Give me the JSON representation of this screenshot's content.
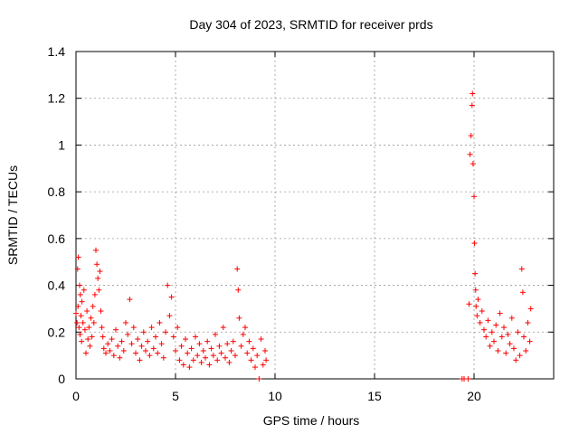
{
  "chart_data": {
    "type": "scatter",
    "title": "Day 304 of 2023, SRMTID for receiver prds",
    "xlabel": "GPS time / hours",
    "ylabel": "SRMTID / TECUs",
    "xlim": [
      0,
      24
    ],
    "ylim": [
      0,
      1.4
    ],
    "xticks": [
      0,
      5,
      10,
      15,
      20
    ],
    "xtick_labels": [
      "0",
      "5",
      "10",
      "15",
      "20"
    ],
    "yticks": [
      0,
      0.2,
      0.4,
      0.6,
      0.8,
      1.0,
      1.2,
      1.4
    ],
    "ytick_labels": [
      "0",
      "0.2",
      "0.4",
      "0.6",
      "0.8",
      "1",
      "1.2",
      "1.4"
    ],
    "grid": true,
    "marker": "+",
    "color": "#ff0000",
    "series": [
      {
        "name": "prds",
        "points": [
          [
            0.0,
            0.28
          ],
          [
            0.05,
            0.24
          ],
          [
            0.08,
            0.47
          ],
          [
            0.1,
            0.31
          ],
          [
            0.12,
            0.52
          ],
          [
            0.15,
            0.22
          ],
          [
            0.18,
            0.4
          ],
          [
            0.2,
            0.19
          ],
          [
            0.22,
            0.36
          ],
          [
            0.25,
            0.27
          ],
          [
            0.28,
            0.16
          ],
          [
            0.3,
            0.33
          ],
          [
            0.35,
            0.24
          ],
          [
            0.4,
            0.38
          ],
          [
            0.45,
            0.21
          ],
          [
            0.5,
            0.11
          ],
          [
            0.55,
            0.29
          ],
          [
            0.6,
            0.17
          ],
          [
            0.65,
            0.22
          ],
          [
            0.7,
            0.14
          ],
          [
            0.75,
            0.26
          ],
          [
            0.8,
            0.18
          ],
          [
            0.85,
            0.31
          ],
          [
            0.9,
            0.24
          ],
          [
            0.95,
            0.36
          ],
          [
            1.0,
            0.55
          ],
          [
            1.05,
            0.49
          ],
          [
            1.1,
            0.43
          ],
          [
            1.15,
            0.38
          ],
          [
            1.2,
            0.46
          ],
          [
            1.25,
            0.29
          ],
          [
            1.3,
            0.22
          ],
          [
            1.35,
            0.18
          ],
          [
            1.4,
            0.13
          ],
          [
            1.5,
            0.11
          ],
          [
            1.6,
            0.15
          ],
          [
            1.7,
            0.12
          ],
          [
            1.8,
            0.17
          ],
          [
            1.9,
            0.1
          ],
          [
            2.0,
            0.21
          ],
          [
            2.1,
            0.14
          ],
          [
            2.2,
            0.09
          ],
          [
            2.3,
            0.16
          ],
          [
            2.4,
            0.12
          ],
          [
            2.5,
            0.24
          ],
          [
            2.6,
            0.19
          ],
          [
            2.7,
            0.34
          ],
          [
            2.8,
            0.15
          ],
          [
            2.9,
            0.22
          ],
          [
            3.0,
            0.11
          ],
          [
            3.1,
            0.17
          ],
          [
            3.2,
            0.08
          ],
          [
            3.3,
            0.14
          ],
          [
            3.4,
            0.2
          ],
          [
            3.5,
            0.12
          ],
          [
            3.6,
            0.16
          ],
          [
            3.7,
            0.1
          ],
          [
            3.8,
            0.22
          ],
          [
            3.9,
            0.13
          ],
          [
            4.0,
            0.18
          ],
          [
            4.1,
            0.11
          ],
          [
            4.2,
            0.24
          ],
          [
            4.3,
            0.15
          ],
          [
            4.4,
            0.09
          ],
          [
            4.5,
            0.2
          ],
          [
            4.6,
            0.4
          ],
          [
            4.7,
            0.27
          ],
          [
            4.8,
            0.35
          ],
          [
            4.9,
            0.18
          ],
          [
            5.0,
            0.12
          ],
          [
            5.1,
            0.22
          ],
          [
            5.2,
            0.08
          ],
          [
            5.3,
            0.14
          ],
          [
            5.4,
            0.06
          ],
          [
            5.5,
            0.17
          ],
          [
            5.6,
            0.11
          ],
          [
            5.7,
            0.05
          ],
          [
            5.8,
            0.13
          ],
          [
            5.9,
            0.08
          ],
          [
            6.0,
            0.18
          ],
          [
            6.1,
            0.1
          ],
          [
            6.2,
            0.15
          ],
          [
            6.3,
            0.07
          ],
          [
            6.4,
            0.12
          ],
          [
            6.5,
            0.09
          ],
          [
            6.6,
            0.16
          ],
          [
            6.7,
            0.06
          ],
          [
            6.8,
            0.13
          ],
          [
            6.9,
            0.1
          ],
          [
            7.0,
            0.19
          ],
          [
            7.1,
            0.08
          ],
          [
            7.2,
            0.14
          ],
          [
            7.3,
            0.11
          ],
          [
            7.4,
            0.22
          ],
          [
            7.5,
            0.09
          ],
          [
            7.6,
            0.15
          ],
          [
            7.7,
            0.07
          ],
          [
            7.8,
            0.12
          ],
          [
            7.9,
            0.16
          ],
          [
            8.0,
            0.1
          ],
          [
            8.1,
            0.47
          ],
          [
            8.15,
            0.38
          ],
          [
            8.2,
            0.26
          ],
          [
            8.3,
            0.14
          ],
          [
            8.4,
            0.19
          ],
          [
            8.5,
            0.22
          ],
          [
            8.6,
            0.11
          ],
          [
            8.7,
            0.16
          ],
          [
            8.8,
            0.08
          ],
          [
            8.9,
            0.13
          ],
          [
            9.0,
            0.05
          ],
          [
            9.1,
            0.1
          ],
          [
            9.2,
            0.0
          ],
          [
            9.3,
            0.17
          ],
          [
            9.4,
            0.06
          ],
          [
            9.5,
            0.12
          ],
          [
            9.55,
            0.08
          ],
          [
            19.4,
            0.0
          ],
          [
            19.5,
            0.0
          ],
          [
            19.7,
            0.0
          ],
          [
            19.75,
            0.32
          ],
          [
            19.8,
            0.96
          ],
          [
            19.85,
            1.04
          ],
          [
            19.9,
            1.17
          ],
          [
            19.92,
            1.22
          ],
          [
            19.95,
            0.92
          ],
          [
            20.0,
            0.78
          ],
          [
            20.02,
            0.58
          ],
          [
            20.05,
            0.45
          ],
          [
            20.08,
            0.38
          ],
          [
            20.1,
            0.31
          ],
          [
            20.15,
            0.27
          ],
          [
            20.2,
            0.34
          ],
          [
            20.3,
            0.24
          ],
          [
            20.4,
            0.29
          ],
          [
            20.5,
            0.21
          ],
          [
            20.6,
            0.18
          ],
          [
            20.7,
            0.25
          ],
          [
            20.8,
            0.14
          ],
          [
            20.9,
            0.2
          ],
          [
            21.0,
            0.16
          ],
          [
            21.1,
            0.23
          ],
          [
            21.2,
            0.12
          ],
          [
            21.3,
            0.28
          ],
          [
            21.4,
            0.18
          ],
          [
            21.5,
            0.22
          ],
          [
            21.6,
            0.11
          ],
          [
            21.7,
            0.19
          ],
          [
            21.8,
            0.15
          ],
          [
            21.9,
            0.26
          ],
          [
            22.0,
            0.13
          ],
          [
            22.1,
            0.08
          ],
          [
            22.2,
            0.2
          ],
          [
            22.3,
            0.1
          ],
          [
            22.4,
            0.47
          ],
          [
            22.45,
            0.37
          ],
          [
            22.5,
            0.18
          ],
          [
            22.6,
            0.12
          ],
          [
            22.7,
            0.24
          ],
          [
            22.8,
            0.16
          ],
          [
            22.85,
            0.3
          ]
        ]
      }
    ]
  }
}
